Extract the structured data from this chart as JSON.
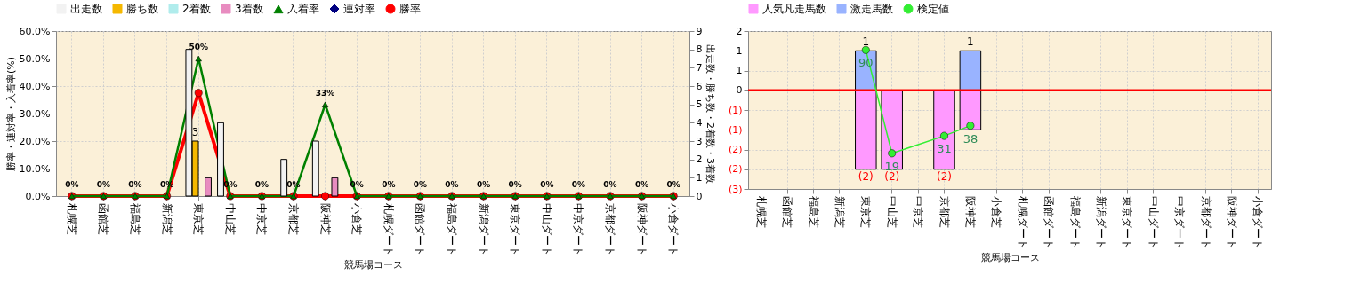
{
  "chart_data": [
    {
      "type": "bar",
      "xlabel": "競馬場コース",
      "ylabel": "勝率・連対率・入着率(%)",
      "y2label": "出走数・勝ち数・2着数・3着数",
      "categories": [
        "札幌芝",
        "函館芝",
        "福島芝",
        "新潟芝",
        "東京芝",
        "中山芝",
        "中京芝",
        "京都芝",
        "阪神芝",
        "小倉芝",
        "札幌ダート",
        "函館ダート",
        "福島ダート",
        "新潟ダート",
        "東京ダート",
        "中山ダート",
        "中京ダート",
        "京都ダート",
        "阪神ダート",
        "小倉ダート"
      ],
      "series": [
        {
          "name": "出走数",
          "axis": "y2",
          "color": "#f2f2f2",
          "values": [
            null,
            null,
            null,
            null,
            8,
            4,
            null,
            2,
            3,
            null,
            null,
            null,
            null,
            null,
            null,
            null,
            null,
            null,
            null,
            null
          ]
        },
        {
          "name": "勝ち数",
          "axis": "y2",
          "color": "#f5b800",
          "values": [
            null,
            null,
            null,
            null,
            3,
            null,
            null,
            null,
            null,
            null,
            null,
            null,
            null,
            null,
            null,
            null,
            null,
            null,
            null,
            null
          ],
          "value_labels": [
            null,
            null,
            null,
            null,
            "3",
            null,
            null,
            null,
            null,
            null,
            null,
            null,
            null,
            null,
            null,
            null,
            null,
            null,
            null,
            null
          ]
        },
        {
          "name": "2着数",
          "axis": "y2",
          "color": "#b0ecec",
          "values": [
            null,
            null,
            null,
            null,
            null,
            null,
            null,
            null,
            null,
            null,
            null,
            null,
            null,
            null,
            null,
            null,
            null,
            null,
            null,
            null
          ]
        },
        {
          "name": "3着数",
          "axis": "y2",
          "color": "#e88cc0",
          "values": [
            null,
            null,
            null,
            null,
            1,
            null,
            null,
            null,
            1,
            null,
            null,
            null,
            null,
            null,
            null,
            null,
            null,
            null,
            null,
            null
          ]
        },
        {
          "name": "入着率",
          "type": "line",
          "axis": "y",
          "color": "#008000",
          "marker": "triangle",
          "values": [
            0,
            0,
            0,
            0,
            50,
            0,
            0,
            0,
            33.3,
            0,
            0,
            0,
            0,
            0,
            0,
            0,
            0,
            0,
            0,
            0
          ],
          "value_labels": [
            "0%",
            "0%",
            "0%",
            "0%",
            "50%",
            "0%",
            "0%",
            "0%",
            "33%",
            "0%",
            "0%",
            "0%",
            "0%",
            "0%",
            "0%",
            "0%",
            "0%",
            "0%",
            "0%",
            "0%"
          ]
        },
        {
          "name": "連対率",
          "type": "line",
          "axis": "y",
          "color": "#000080",
          "marker": "diamond",
          "values": [
            null,
            null,
            null,
            null,
            null,
            null,
            null,
            null,
            null,
            null,
            null,
            null,
            null,
            null,
            null,
            null,
            null,
            null,
            null,
            null
          ]
        },
        {
          "name": "勝率",
          "type": "line",
          "axis": "y",
          "color": "#ff0000",
          "marker": "circle",
          "values": [
            0,
            0,
            0,
            0,
            37.5,
            0,
            0,
            0,
            0,
            0,
            0,
            0,
            0,
            0,
            0,
            0,
            0,
            0,
            0,
            0
          ]
        }
      ],
      "ylim": [
        0,
        60
      ],
      "yticks": [
        {
          "value": 0,
          "label": "0.0%"
        },
        {
          "value": 10,
          "label": "10.0%"
        },
        {
          "value": 20,
          "label": "20.0%"
        },
        {
          "value": 30,
          "label": "30.0%"
        },
        {
          "value": 40,
          "label": "40.0%"
        },
        {
          "value": 50,
          "label": "50.0%"
        },
        {
          "value": 60,
          "label": "60.0%"
        }
      ],
      "y2lim": [
        0,
        9
      ],
      "y2ticks": [
        0,
        1,
        2,
        3,
        4,
        5,
        6,
        7,
        8,
        9
      ],
      "grid": true,
      "legend": "top"
    },
    {
      "type": "bar",
      "xlabel": "競馬場コース",
      "stacked": true,
      "categories": [
        "札幌芝",
        "函館芝",
        "福島芝",
        "新潟芝",
        "東京芝",
        "中山芝",
        "中京芝",
        "京都芝",
        "阪神芝",
        "小倉芝",
        "札幌ダート",
        "函館ダート",
        "福島ダート",
        "新潟ダート",
        "東京ダート",
        "中山ダート",
        "中京ダート",
        "京都ダート",
        "阪神ダート",
        "小倉ダート"
      ],
      "series": [
        {
          "name": "人気凡走馬数",
          "axis": "y",
          "color": "#ff99ff",
          "values": [
            null,
            null,
            null,
            null,
            -2,
            -2,
            null,
            -2,
            -1,
            null,
            null,
            null,
            null,
            null,
            null,
            null,
            null,
            null,
            null,
            null
          ],
          "value_labels": [
            null,
            null,
            null,
            null,
            "(2)",
            "(2)",
            null,
            "(2)",
            null,
            null,
            null,
            null,
            null,
            null,
            null,
            null,
            null,
            null,
            null,
            null
          ]
        },
        {
          "name": "激走馬数",
          "axis": "y",
          "color": "#99b3ff",
          "values": [
            null,
            null,
            null,
            null,
            1,
            null,
            null,
            null,
            1,
            null,
            null,
            null,
            null,
            null,
            null,
            null,
            null,
            null,
            null,
            null
          ],
          "value_labels": [
            null,
            null,
            null,
            null,
            "1",
            null,
            null,
            null,
            "1",
            null,
            null,
            null,
            null,
            null,
            null,
            null,
            null,
            null,
            null,
            null
          ]
        },
        {
          "name": "検定値",
          "type": "line",
          "axis": "y2",
          "color": "#33ee33",
          "marker": "circle",
          "x": [
            "東京芝",
            "中山芝",
            "京都芝",
            "阪神芝"
          ],
          "values": [
            90,
            19,
            31,
            38
          ],
          "value_labels": [
            "90",
            "19",
            "31",
            "38"
          ]
        }
      ],
      "ylim": [
        -2.5,
        1.5
      ],
      "yticks": [
        {
          "value": 1.5,
          "label": "2"
        },
        {
          "value": 1,
          "label": "1"
        },
        {
          "value": 0.5,
          "label": "1"
        },
        {
          "value": 0,
          "label": "0"
        },
        {
          "value": -0.5,
          "label": "(1)"
        },
        {
          "value": -1,
          "label": "(1)"
        },
        {
          "value": -1.5,
          "label": "(2)"
        },
        {
          "value": -2,
          "label": "(2)"
        },
        {
          "value": -2.5,
          "label": "(3)"
        }
      ],
      "y2lim": [
        -5.5,
        103
      ],
      "ref_lines": [
        {
          "axis": "y",
          "value": 0,
          "color": "#ff0000"
        }
      ],
      "grid": true,
      "legend": "top"
    }
  ]
}
